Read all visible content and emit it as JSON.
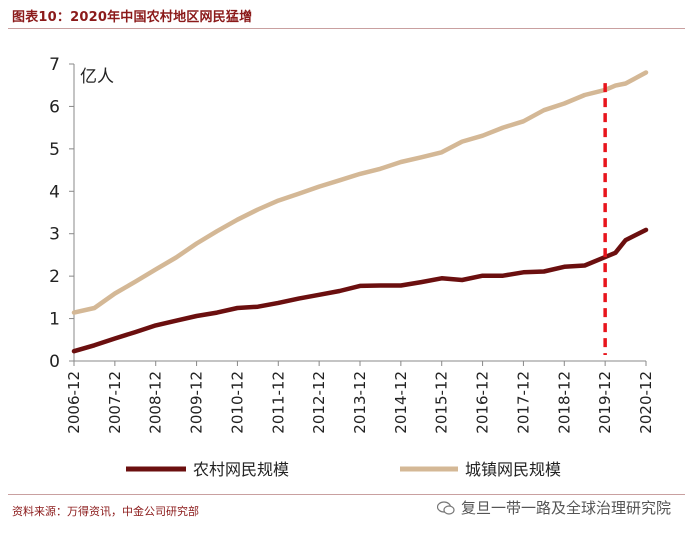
{
  "header": {
    "title": "图表10：2020年中国农村地区网民猛增"
  },
  "footer": {
    "source": "资料来源：万得资讯，中金公司研究部",
    "watermark": "复旦一带一路及全球治理研究院"
  },
  "chart_data": {
    "type": "line",
    "title": "",
    "ylabel": "亿人",
    "xlabel": "",
    "ylim": [
      0,
      7
    ],
    "yticks": [
      0,
      1,
      2,
      3,
      4,
      5,
      6,
      7
    ],
    "x_tick_labels": [
      "2006-12",
      "2007-12",
      "2008-12",
      "2009-12",
      "2010-12",
      "2011-12",
      "2012-12",
      "2013-12",
      "2014-12",
      "2015-12",
      "2016-12",
      "2017-12",
      "2018-12",
      "2019-12",
      "2020-12"
    ],
    "x": [
      0,
      0.5,
      1,
      1.5,
      2,
      2.5,
      3,
      3.5,
      4,
      4.5,
      5,
      5.5,
      6,
      6.5,
      7,
      7.5,
      8,
      8.5,
      9,
      9.5,
      10,
      10.5,
      11,
      11.5,
      12,
      12.5,
      13,
      13.25,
      13.5,
      14
    ],
    "series": [
      {
        "name": "农村网民规模",
        "color": "#6b0f0f",
        "values": [
          0.23,
          0.37,
          0.53,
          0.68,
          0.84,
          0.95,
          1.06,
          1.14,
          1.25,
          1.28,
          1.37,
          1.47,
          1.56,
          1.65,
          1.77,
          1.78,
          1.78,
          1.86,
          1.95,
          1.91,
          2.01,
          2.01,
          2.09,
          2.11,
          2.22,
          2.25,
          2.45,
          2.55,
          2.85,
          3.09
        ]
      },
      {
        "name": "城镇网民规模",
        "color": "#d4b896",
        "values": [
          1.14,
          1.25,
          1.59,
          1.87,
          2.16,
          2.44,
          2.77,
          3.06,
          3.33,
          3.57,
          3.78,
          3.94,
          4.11,
          4.26,
          4.41,
          4.53,
          4.69,
          4.8,
          4.92,
          5.17,
          5.31,
          5.5,
          5.65,
          5.91,
          6.07,
          6.27,
          6.39,
          6.49,
          6.54,
          6.8
        ]
      }
    ],
    "marker": {
      "x": 13.0,
      "color": "#e8141c",
      "style": "dashed"
    },
    "legend_position": "bottom"
  }
}
